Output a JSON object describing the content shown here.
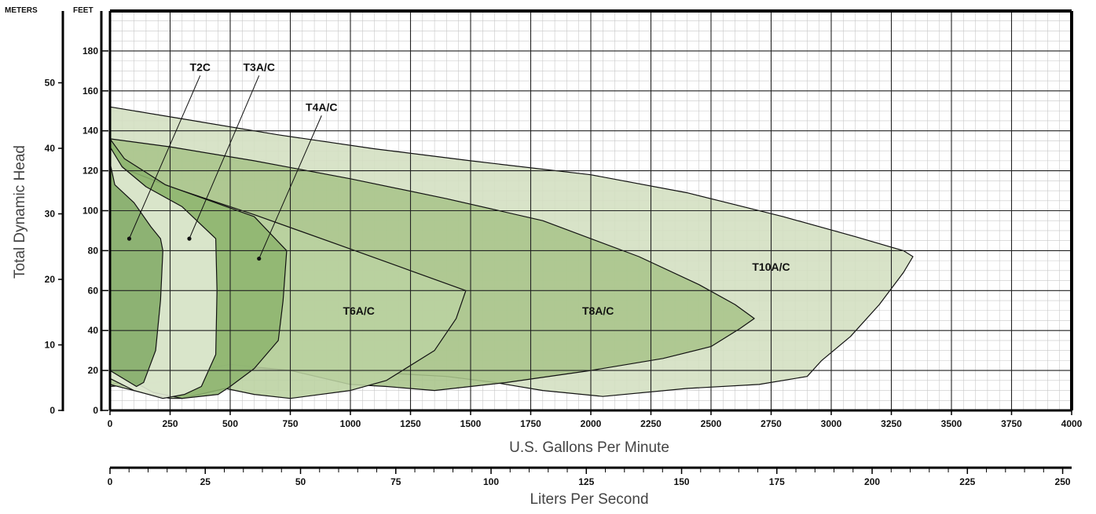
{
  "chart_data": {
    "type": "area",
    "xlabel": "U.S. Gallons Per Minute",
    "ylabel": "Total Dynamic Head",
    "x": {
      "min": 0,
      "max": 4000,
      "step": 250,
      "minor_step": 50,
      "ticks": [
        "0",
        "250",
        "500",
        "750",
        "1000",
        "1250",
        "1500",
        "1750",
        "2000",
        "2250",
        "2500",
        "2750",
        "3000",
        "3250",
        "3500",
        "3750",
        "4000"
      ]
    },
    "y": {
      "unit": "FEET",
      "min": 0,
      "max": 200,
      "step": 20,
      "minor_step": 5,
      "ticks": [
        "0",
        "20",
        "40",
        "60",
        "80",
        "100",
        "120",
        "140",
        "160",
        "180"
      ]
    },
    "y2": {
      "unit": "METERS",
      "ticks": [
        "0",
        "10",
        "20",
        "30",
        "40",
        "50"
      ]
    },
    "x2": {
      "label": "Liters Per Second",
      "ticks": [
        "0",
        "25",
        "50",
        "75",
        "100",
        "125",
        "150",
        "175",
        "200",
        "225",
        "250"
      ]
    },
    "grid": true,
    "series": [
      {
        "name": "T10A/C",
        "fill": "#d3dfc0",
        "label_at": [
          2750,
          70
        ],
        "points": [
          [
            0,
            152
          ],
          [
            300,
            146
          ],
          [
            700,
            138
          ],
          [
            1100,
            131
          ],
          [
            1500,
            125
          ],
          [
            2000,
            118
          ],
          [
            2400,
            109
          ],
          [
            2800,
            97
          ],
          [
            3100,
            87
          ],
          [
            3300,
            80
          ],
          [
            3340,
            77
          ],
          [
            3300,
            69
          ],
          [
            3200,
            53
          ],
          [
            3080,
            37
          ],
          [
            2960,
            25
          ],
          [
            2900,
            17
          ],
          [
            2700,
            13
          ],
          [
            2400,
            11
          ],
          [
            2050,
            7
          ],
          [
            1800,
            10
          ],
          [
            1600,
            14
          ],
          [
            1400,
            17
          ],
          [
            1100,
            19
          ],
          [
            850,
            20
          ],
          [
            600,
            21
          ],
          [
            400,
            20
          ],
          [
            200,
            14
          ],
          [
            0,
            12
          ]
        ]
      },
      {
        "name": "T8A/C",
        "fill": "#a9c48a",
        "label_at": [
          2030,
          48
        ],
        "points": [
          [
            0,
            136
          ],
          [
            250,
            132
          ],
          [
            600,
            125
          ],
          [
            1000,
            116
          ],
          [
            1400,
            106
          ],
          [
            1800,
            95
          ],
          [
            2200,
            77
          ],
          [
            2450,
            63
          ],
          [
            2600,
            53
          ],
          [
            2680,
            46
          ],
          [
            2620,
            41
          ],
          [
            2500,
            32
          ],
          [
            2300,
            26
          ],
          [
            2000,
            20
          ],
          [
            1650,
            14
          ],
          [
            1350,
            10
          ],
          [
            1150,
            12
          ],
          [
            1000,
            13
          ],
          [
            750,
            20
          ],
          [
            500,
            23
          ],
          [
            250,
            18
          ],
          [
            0,
            13
          ]
        ]
      },
      {
        "name": "T6A/C",
        "fill": "#bbd2a0",
        "label_at": [
          1035,
          48
        ],
        "points": [
          [
            0,
            131
          ],
          [
            60,
            121
          ],
          [
            250,
            112
          ],
          [
            600,
            98
          ],
          [
            950,
            83
          ],
          [
            1250,
            70
          ],
          [
            1480,
            60
          ],
          [
            1440,
            46
          ],
          [
            1350,
            30
          ],
          [
            1150,
            15
          ],
          [
            1000,
            10
          ],
          [
            750,
            6
          ],
          [
            600,
            8
          ],
          [
            480,
            11
          ],
          [
            300,
            6
          ],
          [
            250,
            6
          ],
          [
            130,
            9
          ],
          [
            0,
            13
          ]
        ]
      },
      {
        "name": "T4A/C",
        "fill": "#8db46e",
        "label_at": null,
        "points": [
          [
            0,
            136
          ],
          [
            60,
            126
          ],
          [
            230,
            113
          ],
          [
            600,
            97
          ],
          [
            735,
            80
          ],
          [
            720,
            55
          ],
          [
            700,
            35
          ],
          [
            600,
            21
          ],
          [
            500,
            12
          ],
          [
            450,
            8
          ],
          [
            300,
            6
          ],
          [
            180,
            9
          ],
          [
            0,
            21
          ]
        ]
      },
      {
        "name": "T3A/C",
        "fill": "#e3ead6",
        "label_at": null,
        "points": [
          [
            0,
            132
          ],
          [
            50,
            122
          ],
          [
            150,
            112
          ],
          [
            300,
            102
          ],
          [
            440,
            86
          ],
          [
            445,
            60
          ],
          [
            440,
            28
          ],
          [
            380,
            12
          ],
          [
            310,
            8
          ],
          [
            220,
            6
          ],
          [
            100,
            10
          ],
          [
            0,
            16
          ]
        ]
      },
      {
        "name": "T2C",
        "fill": "#82ab66",
        "label_at": null,
        "points": [
          [
            0,
            124
          ],
          [
            20,
            113
          ],
          [
            100,
            104
          ],
          [
            170,
            92
          ],
          [
            210,
            86
          ],
          [
            220,
            80
          ],
          [
            210,
            55
          ],
          [
            190,
            30
          ],
          [
            140,
            14
          ],
          [
            110,
            12
          ],
          [
            0,
            20
          ]
        ]
      }
    ],
    "callouts": [
      {
        "name": "T2C",
        "label_at": [
          375,
          170
        ],
        "point": [
          80,
          86
        ]
      },
      {
        "name": "T3A/C",
        "label_at": [
          620,
          170
        ],
        "point": [
          330,
          86
        ]
      },
      {
        "name": "T4A/C",
        "label_at": [
          880,
          150
        ],
        "point": [
          620,
          76
        ]
      }
    ]
  }
}
